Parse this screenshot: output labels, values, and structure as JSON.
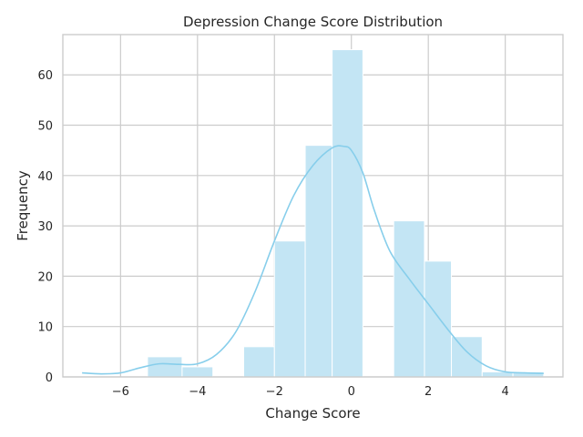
{
  "chart_data": {
    "type": "bar",
    "title": "Depression Change Score Distribution",
    "xlabel": "Change Score",
    "ylabel": "Frequency",
    "xlim": [
      -7.5,
      5.5
    ],
    "ylim": [
      0,
      68
    ],
    "xticks": [
      -6,
      -4,
      -2,
      0,
      2,
      4
    ],
    "yticks": [
      0,
      10,
      20,
      30,
      40,
      50,
      60
    ],
    "grid": true,
    "bar_color": "#c3e5f4",
    "kde_color": "#87ceeb",
    "bins": [
      {
        "x0": -7.0,
        "x1": -6.0,
        "count": 0
      },
      {
        "x0": -6.0,
        "x1": -5.0,
        "count": 0
      },
      {
        "x0": -5.0,
        "x1": -4.0,
        "count": 4
      },
      {
        "x0": -4.0,
        "x1": -3.0,
        "count": 2
      },
      {
        "x0": -3.0,
        "x1": -2.0,
        "count": 0
      },
      {
        "x0": -2.0,
        "x1": -1.0,
        "count": 6
      },
      {
        "x0": -1.0,
        "x1": 0.0,
        "count": 27
      },
      {
        "x0": 0.0,
        "x1": 1.0,
        "count": 46
      },
      {
        "x0": 1.0,
        "x1": 2.0,
        "count": 65
      },
      {
        "x0": 2.0,
        "x1": 3.0,
        "count": 0
      },
      {
        "x0": 3.0,
        "x1": 4.0,
        "count": 31
      },
      {
        "x0": 4.0,
        "x1": 5.0,
        "count": 23
      }
    ],
    "kde": {
      "x": [
        -7.0,
        -6.5,
        -6.0,
        -5.5,
        -5.0,
        -4.5,
        -4.0,
        -3.5,
        -3.0,
        -2.5,
        -2.0,
        -1.5,
        -1.0,
        -0.5,
        -0.2,
        0.0,
        0.3,
        0.6,
        1.0,
        1.5,
        2.0,
        2.5,
        3.0,
        3.5,
        4.0,
        4.5,
        5.0
      ],
      "y": [
        0.8,
        0.6,
        0.8,
        1.8,
        2.6,
        2.5,
        2.6,
        4.5,
        9.0,
        17.0,
        27.0,
        36.0,
        42.0,
        45.5,
        45.8,
        45.0,
        40.5,
        33.0,
        25.0,
        19.5,
        14.5,
        9.5,
        5.0,
        2.2,
        1.0,
        0.8,
        0.7
      ]
    }
  }
}
